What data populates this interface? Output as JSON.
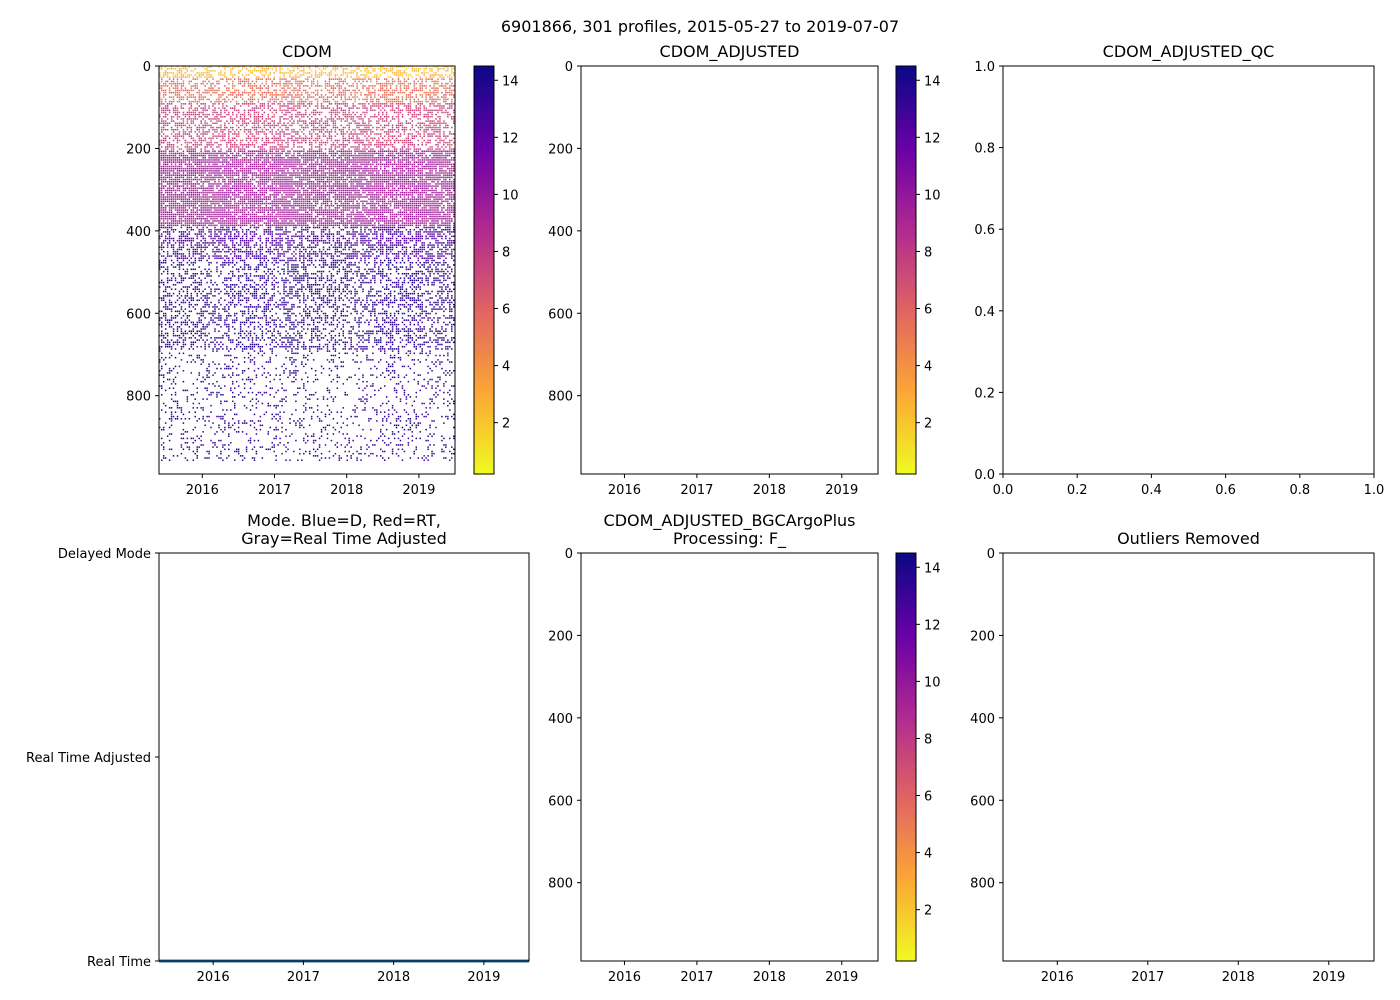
{
  "figure_title": "6901866, 301 profiles, 2015-05-27 to 2019-07-07",
  "colormap": [
    "#f0f921",
    "#fca636",
    "#e16462",
    "#b12a90",
    "#6a00a8",
    "#0d0887"
  ],
  "mode_line_color": "#1f77b4",
  "chart_data": [
    {
      "id": "cdom",
      "type": "heatmap",
      "title": "CDOM",
      "xlabel": "",
      "ylabel": "",
      "xlim": [
        2015.4,
        2019.5
      ],
      "ylim": [
        990,
        0
      ],
      "xticks": [
        2016,
        2017,
        2018,
        2019
      ],
      "xtick_labels": [
        "2016",
        "2017",
        "2018",
        "2019"
      ],
      "yticks": [
        0,
        200,
        400,
        600,
        800
      ],
      "ytick_labels": [
        "0",
        "200",
        "400",
        "600",
        "800"
      ],
      "depth_layers": [
        {
          "from": 0,
          "to": 30,
          "value": 2.5
        },
        {
          "from": 30,
          "to": 90,
          "value": 5.5
        },
        {
          "from": 90,
          "to": 205,
          "value": 7.5
        },
        {
          "from": 205,
          "to": 390,
          "value": 9.5
        },
        {
          "from": 390,
          "to": 470,
          "value": 12.5
        },
        {
          "from": 470,
          "to": 690,
          "value": 13.5
        },
        {
          "from": 690,
          "to": 960,
          "value": 13.5
        }
      ],
      "colorbar": {
        "range": [
          0.2,
          14.5
        ],
        "ticks": [
          2,
          4,
          6,
          8,
          10,
          12,
          14
        ],
        "tick_labels": [
          "2",
          "4",
          "6",
          "8",
          "10",
          "12",
          "14"
        ]
      }
    },
    {
      "id": "cdom_adjusted",
      "type": "heatmap",
      "title": "CDOM_ADJUSTED",
      "xlim": [
        2015.4,
        2019.5
      ],
      "ylim": [
        990,
        0
      ],
      "xticks": [
        2016,
        2017,
        2018,
        2019
      ],
      "xtick_labels": [
        "2016",
        "2017",
        "2018",
        "2019"
      ],
      "yticks": [
        0,
        200,
        400,
        600,
        800
      ],
      "ytick_labels": [
        "0",
        "200",
        "400",
        "600",
        "800"
      ],
      "colorbar": {
        "range": [
          0.2,
          14.5
        ],
        "ticks": [
          2,
          4,
          6,
          8,
          10,
          12,
          14
        ],
        "tick_labels": [
          "2",
          "4",
          "6",
          "8",
          "10",
          "12",
          "14"
        ]
      }
    },
    {
      "id": "cdom_adjusted_qc",
      "type": "scatter",
      "title": "CDOM_ADJUSTED_QC",
      "xlim": [
        0,
        1
      ],
      "ylim": [
        0,
        1
      ],
      "xticks": [
        0,
        0.2,
        0.4,
        0.6,
        0.8,
        1.0
      ],
      "xtick_labels": [
        "0.0",
        "0.2",
        "0.4",
        "0.6",
        "0.8",
        "1.0"
      ],
      "yticks": [
        0,
        0.2,
        0.4,
        0.6,
        0.8,
        1.0
      ],
      "ytick_labels": [
        "0.0",
        "0.2",
        "0.4",
        "0.6",
        "0.8",
        "1.0"
      ]
    },
    {
      "id": "mode",
      "type": "line",
      "title": "Mode. Blue=D, Red=RT,",
      "title2": "Gray=Real Time Adjusted",
      "xlim": [
        2015.4,
        2019.5
      ],
      "ylim": [
        0,
        2
      ],
      "xticks": [
        2016,
        2017,
        2018,
        2019
      ],
      "xtick_labels": [
        "2016",
        "2017",
        "2018",
        "2019"
      ],
      "yticks": [
        2,
        1,
        0
      ],
      "ytick_labels": [
        "Delayed Mode",
        "Real Time Adjusted",
        "Real Time"
      ],
      "series": [
        {
          "name": "Mode",
          "x": [
            2015.4,
            2019.5
          ],
          "y": [
            0,
            0
          ]
        }
      ]
    },
    {
      "id": "bgcargoplus",
      "type": "heatmap",
      "title": "CDOM_ADJUSTED_BGCArgoPlus",
      "title2": "Processing: F_",
      "xlim": [
        2015.4,
        2019.5
      ],
      "ylim": [
        990,
        0
      ],
      "xticks": [
        2016,
        2017,
        2018,
        2019
      ],
      "xtick_labels": [
        "2016",
        "2017",
        "2018",
        "2019"
      ],
      "yticks": [
        0,
        200,
        400,
        600,
        800
      ],
      "ytick_labels": [
        "0",
        "200",
        "400",
        "600",
        "800"
      ],
      "colorbar": {
        "range": [
          0.2,
          14.5
        ],
        "ticks": [
          2,
          4,
          6,
          8,
          10,
          12,
          14
        ],
        "tick_labels": [
          "2",
          "4",
          "6",
          "8",
          "10",
          "12",
          "14"
        ]
      }
    },
    {
      "id": "outliers",
      "type": "scatter",
      "title": "Outliers Removed",
      "xlim": [
        2015.4,
        2019.5
      ],
      "ylim": [
        990,
        0
      ],
      "xticks": [
        2016,
        2017,
        2018,
        2019
      ],
      "xtick_labels": [
        "2016",
        "2017",
        "2018",
        "2019"
      ],
      "yticks": [
        0,
        200,
        400,
        600,
        800
      ],
      "ytick_labels": [
        "0",
        "200",
        "400",
        "600",
        "800"
      ]
    }
  ]
}
